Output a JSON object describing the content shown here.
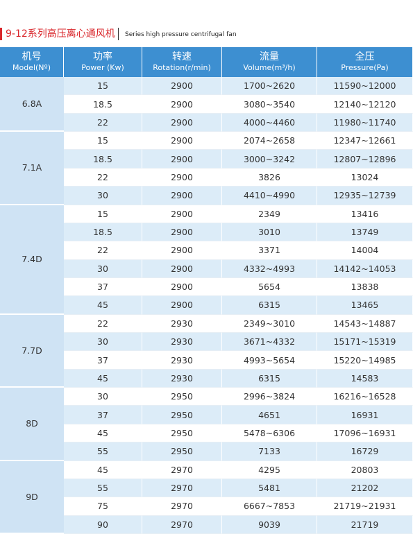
{
  "title": {
    "zh": "9-12系列高压离心通风机",
    "en": "Series high pressure centrifugal fan"
  },
  "table": {
    "header": [
      {
        "zh": "机号",
        "en": "Model(Nº)"
      },
      {
        "zh": "功率",
        "en": "Power (Kw)"
      },
      {
        "zh": "转速",
        "en": "Rotation(r/min)"
      },
      {
        "zh": "流量",
        "en": "Volume(m³/h)"
      },
      {
        "zh": "全压",
        "en": "Pressure(Pa)"
      }
    ],
    "groups": [
      {
        "model": "6.8A",
        "rows": [
          [
            "15",
            "2900",
            "1700~2620",
            "11590~12000"
          ],
          [
            "18.5",
            "2900",
            "3080~3540",
            "12140~12120"
          ],
          [
            "22",
            "2900",
            "4000~4460",
            "11980~11740"
          ]
        ]
      },
      {
        "model": "7.1A",
        "rows": [
          [
            "15",
            "2900",
            "2074~2658",
            "12347~12661"
          ],
          [
            "18.5",
            "2900",
            "3000~3242",
            "12807~12896"
          ],
          [
            "22",
            "2900",
            "3826",
            "13024"
          ],
          [
            "30",
            "2900",
            "4410~4990",
            "12935~12739"
          ]
        ]
      },
      {
        "model": "7.4D",
        "rows": [
          [
            "15",
            "2900",
            "2349",
            "13416"
          ],
          [
            "18.5",
            "2900",
            "3010",
            "13749"
          ],
          [
            "22",
            "2900",
            "3371",
            "14004"
          ],
          [
            "30",
            "2900",
            "4332~4993",
            "14142~14053"
          ],
          [
            "37",
            "2900",
            "5654",
            "13838"
          ],
          [
            "45",
            "2900",
            "6315",
            "13465"
          ]
        ]
      },
      {
        "model": "7.7D",
        "rows": [
          [
            "22",
            "2930",
            "2349~3010",
            "14543~14887"
          ],
          [
            "30",
            "2930",
            "3671~4332",
            "15171~15319"
          ],
          [
            "37",
            "2930",
            "4993~5654",
            "15220~14985"
          ],
          [
            "45",
            "2930",
            "6315",
            "14583"
          ]
        ]
      },
      {
        "model": "8D",
        "rows": [
          [
            "30",
            "2950",
            "2996~3824",
            "16216~16528"
          ],
          [
            "37",
            "2950",
            "4651",
            "16931"
          ],
          [
            "45",
            "2950",
            "5478~6306",
            "17096~16931"
          ],
          [
            "55",
            "2950",
            "7133",
            "16729"
          ]
        ]
      },
      {
        "model": "9D",
        "rows": [
          [
            "45",
            "2970",
            "4295",
            "20803"
          ],
          [
            "55",
            "2970",
            "5481",
            "21202"
          ],
          [
            "75",
            "2970",
            "6667~7853",
            "21719~21931"
          ],
          [
            "90",
            "2970",
            "9039",
            "21719"
          ]
        ]
      }
    ]
  }
}
